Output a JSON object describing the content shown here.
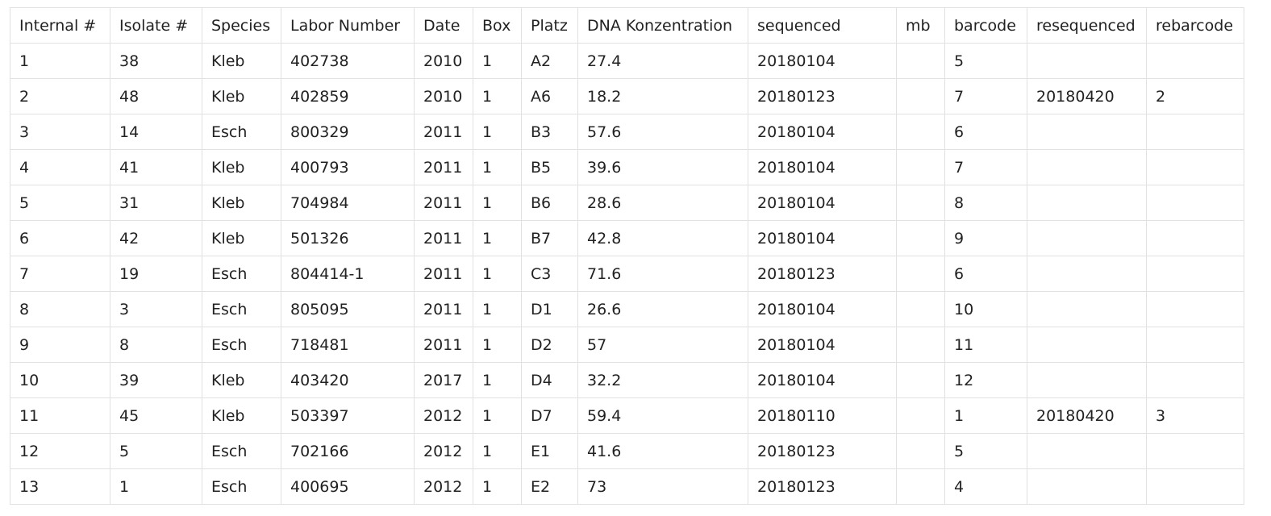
{
  "table": {
    "columns": [
      "Internal #",
      "Isolate #",
      "Species",
      "Labor Number",
      "Date",
      "Box",
      "Platz",
      "DNA Konzentration",
      "sequenced",
      "mb",
      "barcode",
      "resequenced",
      "rebarcode"
    ],
    "rows": [
      [
        "1",
        "38",
        "Kleb",
        "402738",
        "2010",
        "1",
        "A2",
        "27.4",
        "20180104",
        "",
        "5",
        "",
        ""
      ],
      [
        "2",
        "48",
        "Kleb",
        "402859",
        "2010",
        "1",
        "A6",
        "18.2",
        "20180123",
        "",
        "7",
        "20180420",
        "2"
      ],
      [
        "3",
        "14",
        "Esch",
        "800329",
        "2011",
        "1",
        "B3",
        "57.6",
        "20180104",
        "",
        "6",
        "",
        ""
      ],
      [
        "4",
        "41",
        "Kleb",
        "400793",
        "2011",
        "1",
        "B5",
        "39.6",
        "20180104",
        "",
        "7",
        "",
        ""
      ],
      [
        "5",
        "31",
        "Kleb",
        "704984",
        "2011",
        "1",
        "B6",
        "28.6",
        "20180104",
        "",
        "8",
        "",
        ""
      ],
      [
        "6",
        "42",
        "Kleb",
        "501326",
        "2011",
        "1",
        "B7",
        "42.8",
        "20180104",
        "",
        "9",
        "",
        ""
      ],
      [
        "7",
        "19",
        "Esch",
        "804414-1",
        "2011",
        "1",
        "C3",
        "71.6",
        "20180123",
        "",
        "6",
        "",
        ""
      ],
      [
        "8",
        "3",
        "Esch",
        "805095",
        "2011",
        "1",
        "D1",
        "26.6",
        "20180104",
        "",
        "10",
        "",
        ""
      ],
      [
        "9",
        "8",
        "Esch",
        "718481",
        "2011",
        "1",
        "D2",
        "57",
        "20180104",
        "",
        "11",
        "",
        ""
      ],
      [
        "10",
        "39",
        "Kleb",
        "403420",
        "2017",
        "1",
        "D4",
        "32.2",
        "20180104",
        "",
        "12",
        "",
        ""
      ],
      [
        "11",
        "45",
        "Kleb",
        "503397",
        "2012",
        "1",
        "D7",
        "59.4",
        "20180110",
        "",
        "1",
        "20180420",
        "3"
      ],
      [
        "12",
        "5",
        "Esch",
        "702166",
        "2012",
        "1",
        "E1",
        "41.6",
        "20180123",
        "",
        "5",
        "",
        ""
      ],
      [
        "13",
        "1",
        "Esch",
        "400695",
        "2012",
        "1",
        "E2",
        "73",
        "20180123",
        "",
        "4",
        "",
        ""
      ]
    ]
  }
}
